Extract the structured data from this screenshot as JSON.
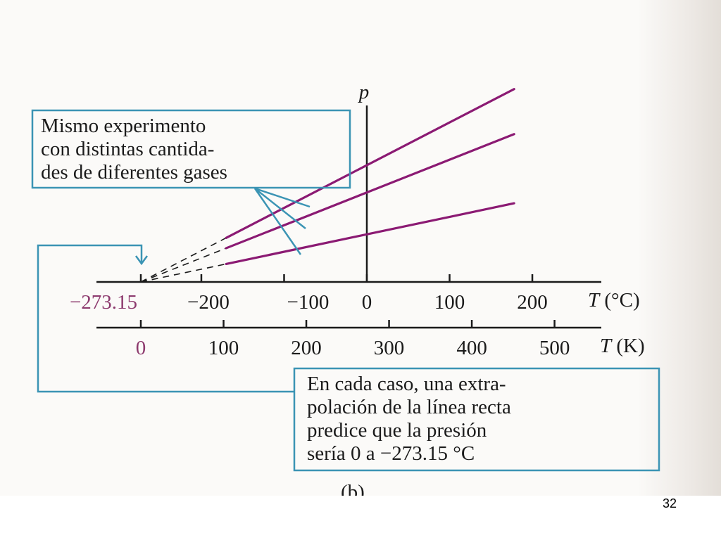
{
  "slide": {
    "page_number": "32",
    "caption": "(b)"
  },
  "colors": {
    "series": "#8b1a73",
    "callout": "#3b94b4",
    "ink": "#1b1b1b",
    "highlight": "#8d3a6e"
  },
  "notes": {
    "left": "Mismo experimento\ncon distintas cantida-\ndes de diferentes gases",
    "right": "En cada caso, una extra-\npolación de la línea recta\npredice que la presión\nsería 0 a −273.15 °C"
  },
  "chart_data": {
    "type": "line",
    "title": "",
    "ylabel": "p",
    "x_axis_celsius": {
      "label_var": "T",
      "label_unit": " (°C)",
      "ticks": [
        {
          "value": -273.15,
          "label": "−273.15",
          "highlight": true
        },
        {
          "value": -200,
          "label": "−200"
        },
        {
          "value": -100,
          "label": "−100"
        },
        {
          "value": 0,
          "label": "0"
        },
        {
          "value": 100,
          "label": "100"
        },
        {
          "value": 200,
          "label": "200"
        }
      ]
    },
    "x_axis_kelvin": {
      "label_var": "T",
      "label_unit": " (K)",
      "ticks": [
        {
          "value": 0,
          "label": "0",
          "highlight": true
        },
        {
          "value": 100,
          "label": "100"
        },
        {
          "value": 200,
          "label": "200"
        },
        {
          "value": 300,
          "label": "300"
        },
        {
          "value": 400,
          "label": "400"
        },
        {
          "value": 500,
          "label": "500"
        }
      ]
    },
    "xlim_celsius": [
      -273.15,
      250
    ],
    "ylim": [
      0,
      8
    ],
    "x_data_range": [
      -273.15,
      178
    ],
    "extrapolated_range": [
      -273.15,
      -170
    ],
    "series": [
      {
        "slope": 0.0152
      },
      {
        "slope": 0.01165
      },
      {
        "slope": 0.0062
      }
    ]
  }
}
